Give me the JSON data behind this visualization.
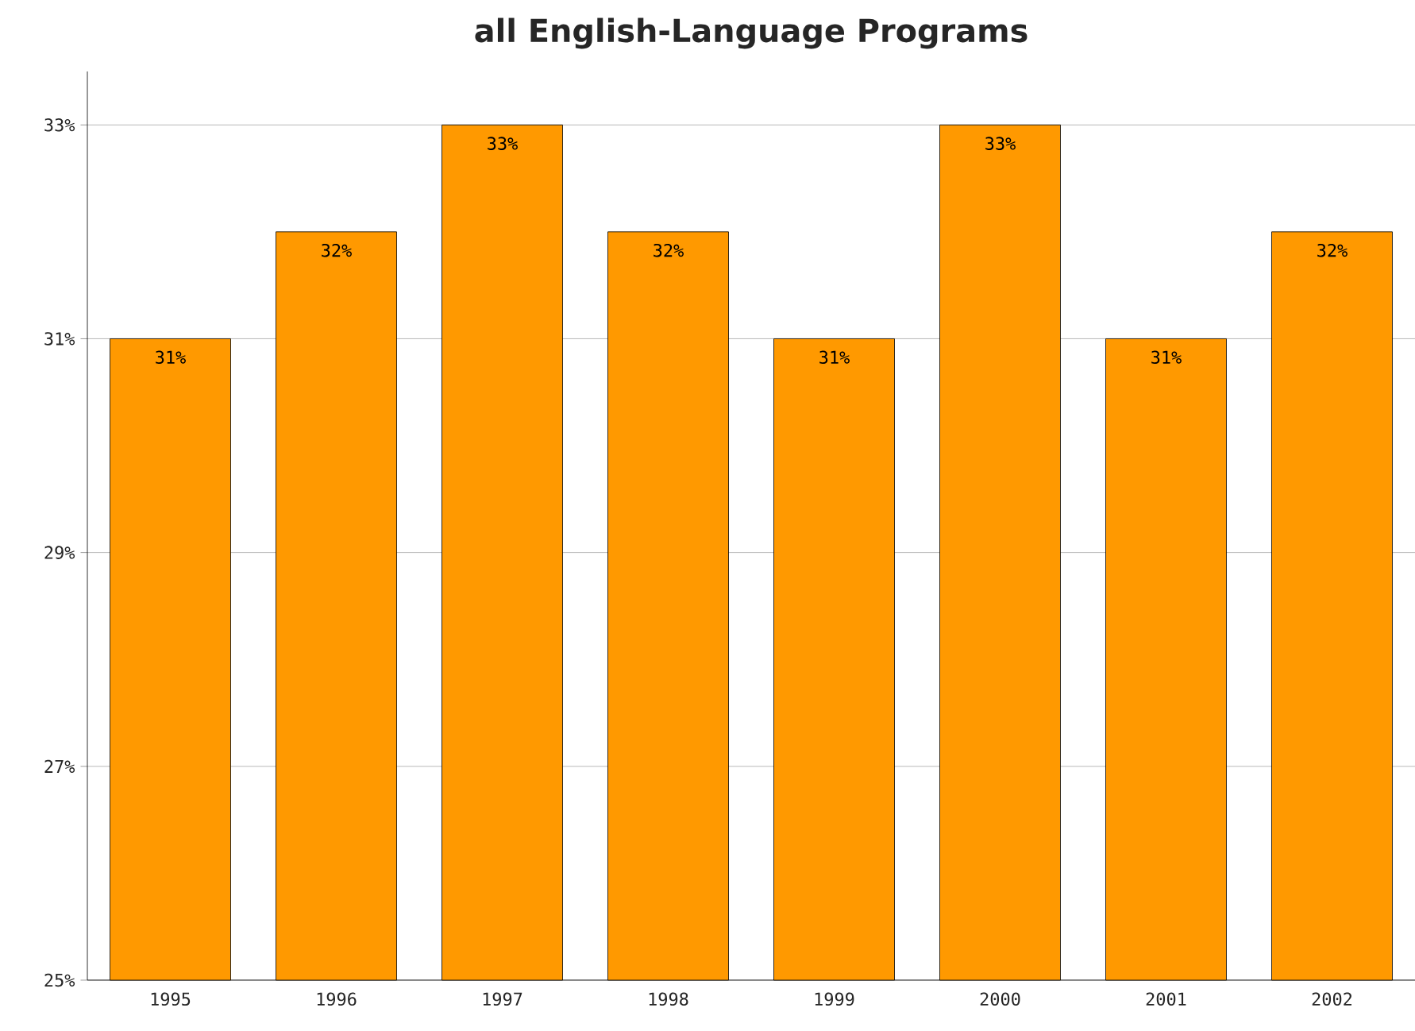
{
  "chart_data": {
    "type": "bar",
    "title": "all English-Language Programs",
    "categories": [
      "1995",
      "1996",
      "1997",
      "1998",
      "1999",
      "2000",
      "2001",
      "2002"
    ],
    "values": [
      31,
      32,
      33,
      32,
      31,
      33,
      31,
      32
    ],
    "value_labels": [
      "31%",
      "32%",
      "33%",
      "32%",
      "31%",
      "33%",
      "31%",
      "32%"
    ],
    "color": "#ff9900",
    "ylim": [
      25,
      33.5
    ],
    "yticks": [
      {
        "value": 25,
        "label": "25%"
      },
      {
        "value": 27,
        "label": "27%"
      },
      {
        "value": 29,
        "label": "29%"
      },
      {
        "value": 31,
        "label": "31%"
      },
      {
        "value": 33,
        "label": "33%"
      }
    ],
    "grid": "y"
  }
}
